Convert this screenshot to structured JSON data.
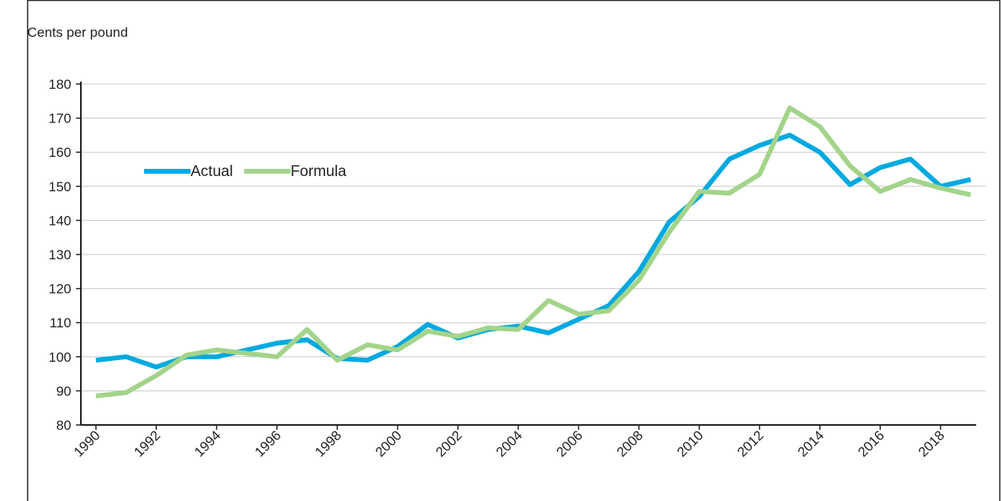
{
  "chart_data": {
    "type": "line",
    "title": "Cents per pound",
    "x": [
      1990,
      1991,
      1992,
      1993,
      1994,
      1995,
      1996,
      1997,
      1998,
      1999,
      2000,
      2001,
      2002,
      2003,
      2004,
      2005,
      2006,
      2007,
      2008,
      2009,
      2010,
      2011,
      2012,
      2013,
      2014,
      2015,
      2016,
      2017,
      2018,
      2019
    ],
    "series": [
      {
        "name": "Actual",
        "color": "#00a9e0",
        "values": [
          99,
          100,
          97,
          100,
          100,
          102,
          104,
          105,
          99.5,
          99,
          103,
          109.5,
          105.5,
          108,
          109,
          107,
          111,
          115,
          125,
          139.5,
          147,
          158,
          162,
          165,
          160,
          150.5,
          155.5,
          158,
          150,
          152
        ]
      },
      {
        "name": "Formula",
        "color": "#a3d48a",
        "values": [
          88.5,
          89.5,
          94.5,
          100.5,
          102,
          101,
          100,
          108,
          99,
          103.5,
          102,
          107.5,
          106,
          108.5,
          108,
          116.5,
          112.5,
          113.5,
          122.5,
          136.5,
          148.5,
          148,
          153.5,
          173,
          167.5,
          156,
          148.5,
          152,
          149.5,
          147.5
        ]
      }
    ],
    "xlim": [
      1989.5,
      2019.5
    ],
    "xticks": [
      1990,
      1992,
      1994,
      1996,
      1998,
      2000,
      2002,
      2004,
      2006,
      2008,
      2010,
      2012,
      2014,
      2016,
      2018
    ],
    "ylim": [
      80,
      180
    ],
    "yticks": [
      80,
      90,
      100,
      110,
      120,
      130,
      140,
      150,
      160,
      170,
      180
    ],
    "grid": true
  }
}
